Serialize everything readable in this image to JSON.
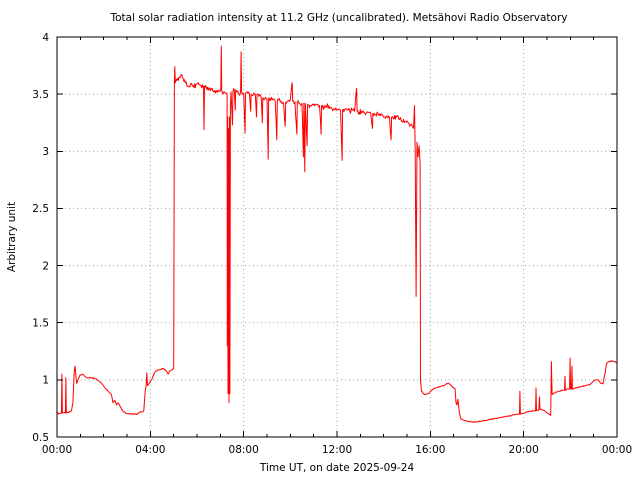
{
  "chart_data": {
    "type": "line",
    "title": "Total solar radiation intensity at 11.2 GHz (uncalibrated). Metsähovi Radio Observatory",
    "xlabel": "Time UT, on date 2025-09-24",
    "ylabel": "Arbitrary unit",
    "xlim_hours": [
      0,
      24
    ],
    "ylim": [
      0.5,
      4
    ],
    "xticks": [
      {
        "hour": 0,
        "label": "00:00"
      },
      {
        "hour": 4,
        "label": "04:00"
      },
      {
        "hour": 8,
        "label": "08:00"
      },
      {
        "hour": 12,
        "label": "12:00"
      },
      {
        "hour": 16,
        "label": "16:00"
      },
      {
        "hour": 20,
        "label": "20:00"
      },
      {
        "hour": 24,
        "label": "00:00"
      }
    ],
    "x_minor_tick_every_hours": 1,
    "yticks": [
      {
        "value": 0.5,
        "label": "0.5"
      },
      {
        "value": 1,
        "label": "1"
      },
      {
        "value": 1.5,
        "label": "1.5"
      },
      {
        "value": 2,
        "label": "2"
      },
      {
        "value": 2.5,
        "label": "2.5"
      },
      {
        "value": 3,
        "label": "3"
      },
      {
        "value": 3.5,
        "label": "3.5"
      },
      {
        "value": 4,
        "label": "4"
      }
    ],
    "grid": {
      "show": true,
      "color": "#a8a8a8",
      "style": "dotted"
    },
    "frame_color": "#000000",
    "background": "#ffffff",
    "legend": "none",
    "series": [
      {
        "name": "total solar radiation intensity (arbitrary unit)",
        "color": "#ff0000",
        "points": [
          [
            0,
            0.72
          ],
          [
            0.08,
            0.7
          ],
          [
            0.19,
            0.71
          ],
          [
            0.21,
            1.05
          ],
          [
            0.23,
            0.71
          ],
          [
            0.36,
            0.71
          ],
          [
            0.38,
            1.02
          ],
          [
            0.4,
            0.71
          ],
          [
            0.55,
            0.72
          ],
          [
            0.62,
            0.73
          ],
          [
            0.68,
            0.8
          ],
          [
            0.74,
            1.08
          ],
          [
            0.77,
            1.12
          ],
          [
            0.8,
            1.06
          ],
          [
            0.84,
            0.97
          ],
          [
            0.9,
            1.0
          ],
          [
            0.98,
            1.04
          ],
          [
            1.1,
            1.05
          ],
          [
            1.25,
            1.02
          ],
          [
            1.45,
            1.02
          ],
          [
            1.65,
            1.01
          ],
          [
            1.8,
            0.99
          ],
          [
            1.95,
            0.96
          ],
          [
            2.1,
            0.92
          ],
          [
            2.25,
            0.89
          ],
          [
            2.33,
            0.87
          ],
          [
            2.4,
            0.8
          ],
          [
            2.48,
            0.82
          ],
          [
            2.55,
            0.78
          ],
          [
            2.62,
            0.8
          ],
          [
            2.72,
            0.76
          ],
          [
            2.85,
            0.72
          ],
          [
            3,
            0.705
          ],
          [
            3.2,
            0.7
          ],
          [
            3.45,
            0.7
          ],
          [
            3.52,
            0.715
          ],
          [
            3.65,
            0.72
          ],
          [
            3.72,
            0.73
          ],
          [
            3.78,
            0.9
          ],
          [
            3.82,
            0.95
          ],
          [
            3.85,
            1.06
          ],
          [
            3.88,
            0.95
          ],
          [
            3.95,
            0.97
          ],
          [
            4.05,
            1.0
          ],
          [
            4.15,
            1.05
          ],
          [
            4.25,
            1.08
          ],
          [
            4.4,
            1.09
          ],
          [
            4.55,
            1.1
          ],
          [
            4.68,
            1.08
          ],
          [
            4.76,
            1.05
          ],
          [
            4.84,
            1.08
          ],
          [
            4.95,
            1.09
          ],
          [
            5,
            1.1
          ],
          [
            5.03,
            3.62
          ],
          [
            5.05,
            3.74
          ],
          [
            5.07,
            3.6
          ],
          [
            5.12,
            3.63
          ],
          [
            5.2,
            3.62
          ],
          [
            5.3,
            3.66
          ],
          [
            5.4,
            3.64
          ],
          [
            5.5,
            3.6
          ],
          [
            5.6,
            3.57
          ],
          [
            5.72,
            3.59
          ],
          [
            5.85,
            3.57
          ],
          [
            5.95,
            3.58
          ],
          [
            6.05,
            3.6
          ],
          [
            6.15,
            3.58
          ],
          [
            6.28,
            3.57
          ],
          [
            6.3,
            3.19
          ],
          [
            6.32,
            3.57
          ],
          [
            6.45,
            3.56
          ],
          [
            6.55,
            3.54
          ],
          [
            6.65,
            3.55
          ],
          [
            6.75,
            3.53
          ],
          [
            6.85,
            3.52
          ],
          [
            6.95,
            3.53
          ],
          [
            7.02,
            3.54
          ],
          [
            7.04,
            3.92
          ],
          [
            7.06,
            3.53
          ],
          [
            7.12,
            3.5
          ],
          [
            7.18,
            3.52
          ],
          [
            7.25,
            3.51
          ],
          [
            7.29,
            3.5
          ],
          [
            7.3,
            1.3
          ],
          [
            7.31,
            3.3
          ],
          [
            7.33,
            0.88
          ],
          [
            7.35,
            3.2
          ],
          [
            7.37,
            0.8
          ],
          [
            7.39,
            3.3
          ],
          [
            7.41,
            0.88
          ],
          [
            7.43,
            3.4
          ],
          [
            7.46,
            3.52
          ],
          [
            7.52,
            3.23
          ],
          [
            7.54,
            3.52
          ],
          [
            7.6,
            3.54
          ],
          [
            7.64,
            3.36
          ],
          [
            7.66,
            3.54
          ],
          [
            7.72,
            3.52
          ],
          [
            7.8,
            3.5
          ],
          [
            7.87,
            3.52
          ],
          [
            7.89,
            3.87
          ],
          [
            7.91,
            3.52
          ],
          [
            7.95,
            3.5
          ],
          [
            8,
            3.51
          ],
          [
            8.06,
            3.16
          ],
          [
            8.08,
            3.5
          ],
          [
            8.15,
            3.52
          ],
          [
            8.25,
            3.5
          ],
          [
            8.3,
            3.35
          ],
          [
            8.32,
            3.5
          ],
          [
            8.4,
            3.49
          ],
          [
            8.5,
            3.5
          ],
          [
            8.55,
            3.3
          ],
          [
            8.57,
            3.5
          ],
          [
            8.65,
            3.48
          ],
          [
            8.75,
            3.47
          ],
          [
            8.8,
            3.25
          ],
          [
            8.82,
            3.47
          ],
          [
            8.9,
            3.46
          ],
          [
            9,
            3.46
          ],
          [
            9.05,
            2.93
          ],
          [
            9.07,
            3.46
          ],
          [
            9.15,
            3.45
          ],
          [
            9.25,
            3.46
          ],
          [
            9.35,
            3.44
          ],
          [
            9.42,
            3.1
          ],
          [
            9.44,
            3.44
          ],
          [
            9.5,
            3.45
          ],
          [
            9.6,
            3.44
          ],
          [
            9.7,
            3.43
          ],
          [
            9.78,
            3.22
          ],
          [
            9.8,
            3.43
          ],
          [
            9.9,
            3.44
          ],
          [
            10,
            3.45
          ],
          [
            10.08,
            3.6
          ],
          [
            10.1,
            3.44
          ],
          [
            10.2,
            3.43
          ],
          [
            10.28,
            3.15
          ],
          [
            10.3,
            3.43
          ],
          [
            10.4,
            3.42
          ],
          [
            10.5,
            3.42
          ],
          [
            10.56,
            2.95
          ],
          [
            10.58,
            3.42
          ],
          [
            10.62,
            2.82
          ],
          [
            10.64,
            3.42
          ],
          [
            10.72,
            3.05
          ],
          [
            10.74,
            3.41
          ],
          [
            10.85,
            3.4
          ],
          [
            10.95,
            3.41
          ],
          [
            11.05,
            3.4
          ],
          [
            11.15,
            3.41
          ],
          [
            11.25,
            3.4
          ],
          [
            11.32,
            3.15
          ],
          [
            11.34,
            3.4
          ],
          [
            11.45,
            3.38
          ],
          [
            11.55,
            3.39
          ],
          [
            11.65,
            3.4
          ],
          [
            11.75,
            3.38
          ],
          [
            11.85,
            3.37
          ],
          [
            11.95,
            3.38
          ],
          [
            12.05,
            3.37
          ],
          [
            12.15,
            3.36
          ],
          [
            12.22,
            2.92
          ],
          [
            12.24,
            3.36
          ],
          [
            12.35,
            3.37
          ],
          [
            12.45,
            3.36
          ],
          [
            12.55,
            3.35
          ],
          [
            12.65,
            3.36
          ],
          [
            12.75,
            3.35
          ],
          [
            12.84,
            3.55
          ],
          [
            12.86,
            3.35
          ],
          [
            12.95,
            3.34
          ],
          [
            13.05,
            3.35
          ],
          [
            13.15,
            3.34
          ],
          [
            13.25,
            3.33
          ],
          [
            13.35,
            3.34
          ],
          [
            13.45,
            3.33
          ],
          [
            13.52,
            3.2
          ],
          [
            13.54,
            3.33
          ],
          [
            13.65,
            3.32
          ],
          [
            13.75,
            3.33
          ],
          [
            13.85,
            3.31
          ],
          [
            13.95,
            3.32
          ],
          [
            14.05,
            3.3
          ],
          [
            14.15,
            3.31
          ],
          [
            14.25,
            3.3
          ],
          [
            14.32,
            3.1
          ],
          [
            14.34,
            3.3
          ],
          [
            14.45,
            3.29
          ],
          [
            14.55,
            3.3
          ],
          [
            14.65,
            3.28
          ],
          [
            14.75,
            3.27
          ],
          [
            14.85,
            3.28
          ],
          [
            14.95,
            3.26
          ],
          [
            15.05,
            3.25
          ],
          [
            15.15,
            3.23
          ],
          [
            15.25,
            3.21
          ],
          [
            15.28,
            3.2
          ],
          [
            15.32,
            3.4
          ],
          [
            15.35,
            3.0
          ],
          [
            15.39,
            1.73
          ],
          [
            15.43,
            3.08
          ],
          [
            15.47,
            2.95
          ],
          [
            15.52,
            3.05
          ],
          [
            15.56,
            2.9
          ],
          [
            15.58,
            1.0
          ],
          [
            15.62,
            0.9
          ],
          [
            15.75,
            0.87
          ],
          [
            15.9,
            0.88
          ],
          [
            16,
            0.9
          ],
          [
            16.2,
            0.93
          ],
          [
            16.4,
            0.94
          ],
          [
            16.6,
            0.95
          ],
          [
            16.75,
            0.97
          ],
          [
            16.85,
            0.96
          ],
          [
            16.97,
            0.93
          ],
          [
            17.06,
            0.92
          ],
          [
            17.1,
            0.8
          ],
          [
            17.14,
            0.78
          ],
          [
            17.18,
            0.83
          ],
          [
            17.24,
            0.72
          ],
          [
            17.3,
            0.66
          ],
          [
            17.45,
            0.645
          ],
          [
            17.7,
            0.635
          ],
          [
            17.95,
            0.63
          ],
          [
            18.2,
            0.64
          ],
          [
            18.6,
            0.655
          ],
          [
            19,
            0.67
          ],
          [
            19.4,
            0.685
          ],
          [
            19.7,
            0.7
          ],
          [
            19.82,
            0.7
          ],
          [
            19.84,
            0.9
          ],
          [
            19.86,
            0.7
          ],
          [
            20,
            0.71
          ],
          [
            20.2,
            0.72
          ],
          [
            20.4,
            0.73
          ],
          [
            20.51,
            0.73
          ],
          [
            20.53,
            0.93
          ],
          [
            20.55,
            0.73
          ],
          [
            20.65,
            0.74
          ],
          [
            20.68,
            0.85
          ],
          [
            20.7,
            0.74
          ],
          [
            20.8,
            0.74
          ],
          [
            20.9,
            0.73
          ],
          [
            21,
            0.71
          ],
          [
            21.1,
            0.7
          ],
          [
            21.16,
            0.69
          ],
          [
            21.19,
            1.16
          ],
          [
            21.22,
            0.87
          ],
          [
            21.35,
            0.89
          ],
          [
            21.5,
            0.9
          ],
          [
            21.65,
            0.91
          ],
          [
            21.75,
            0.91
          ],
          [
            21.77,
            1.03
          ],
          [
            21.79,
            0.91
          ],
          [
            21.9,
            0.92
          ],
          [
            21.97,
            0.92
          ],
          [
            21.99,
            1.19
          ],
          [
            22.01,
            0.92
          ],
          [
            22.05,
            0.92
          ],
          [
            22.07,
            1.12
          ],
          [
            22.09,
            0.92
          ],
          [
            22.25,
            0.93
          ],
          [
            22.45,
            0.94
          ],
          [
            22.65,
            0.95
          ],
          [
            22.85,
            0.96
          ],
          [
            23,
            0.99
          ],
          [
            23.1,
            1.0
          ],
          [
            23.2,
            1.0
          ],
          [
            23.3,
            0.97
          ],
          [
            23.4,
            0.965
          ],
          [
            23.48,
            1.05
          ],
          [
            23.55,
            1.14
          ],
          [
            23.65,
            1.16
          ],
          [
            23.8,
            1.165
          ],
          [
            23.92,
            1.16
          ],
          [
            24,
            1.15
          ]
        ],
        "noise_regions": [
          {
            "from": 0,
            "to": 4.99,
            "amp": 0.004
          },
          {
            "from": 5.08,
            "to": 15.27,
            "amp": 0.022
          },
          {
            "from": 15.62,
            "to": 24,
            "amp": 0.004
          }
        ]
      }
    ]
  }
}
